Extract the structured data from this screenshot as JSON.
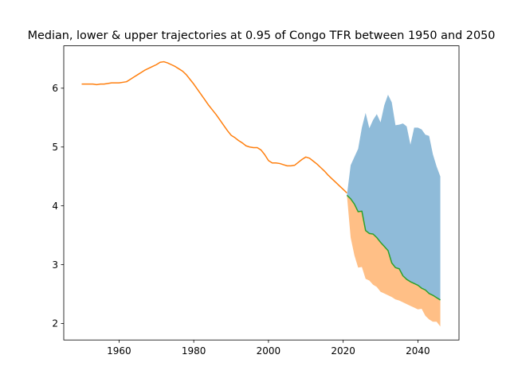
{
  "chart_data": {
    "type": "area",
    "title": "Median, lower & upper trajectories at 0.95 of Congo TFR between 1950 and 2050",
    "xlabel": "",
    "ylabel": "",
    "xlim": [
      1945.2,
      2051.0
    ],
    "ylim": [
      1.72,
      6.72
    ],
    "xticks": [
      1960,
      1980,
      2000,
      2020,
      2040
    ],
    "yticks": [
      2,
      3,
      4,
      5,
      6
    ],
    "grid": false,
    "colors": {
      "historical": "#ff7f0e",
      "median": "#2ca02c",
      "upper_band": "#1f77b4",
      "lower_band": "#ff7f0e",
      "band_alpha": 0.5
    },
    "series": [
      {
        "role": "historical",
        "x": [
          1950,
          1951,
          1952,
          1953,
          1954,
          1955,
          1956,
          1957,
          1958,
          1959,
          1960,
          1961,
          1962,
          1963,
          1964,
          1965,
          1966,
          1967,
          1968,
          1969,
          1970,
          1971,
          1972,
          1973,
          1974,
          1975,
          1976,
          1977,
          1978,
          1979,
          1980,
          1981,
          1982,
          1983,
          1984,
          1985,
          1986,
          1987,
          1988,
          1989,
          1990,
          1991,
          1992,
          1993,
          1994,
          1995,
          1996,
          1997,
          1998,
          1999,
          2000,
          2001,
          2002,
          2003,
          2004,
          2005,
          2006,
          2007,
          2008,
          2009,
          2010,
          2011,
          2012,
          2013,
          2014,
          2015,
          2016,
          2017,
          2018,
          2019,
          2020,
          2021
        ],
        "y": [
          6.07,
          6.07,
          6.07,
          6.07,
          6.06,
          6.07,
          6.07,
          6.08,
          6.09,
          6.09,
          6.09,
          6.1,
          6.11,
          6.15,
          6.19,
          6.23,
          6.27,
          6.31,
          6.34,
          6.37,
          6.4,
          6.44,
          6.45,
          6.43,
          6.4,
          6.37,
          6.33,
          6.29,
          6.23,
          6.15,
          6.07,
          5.98,
          5.89,
          5.8,
          5.71,
          5.63,
          5.55,
          5.46,
          5.37,
          5.28,
          5.2,
          5.16,
          5.11,
          5.07,
          5.02,
          5.0,
          4.99,
          4.99,
          4.95,
          4.87,
          4.77,
          4.73,
          4.73,
          4.72,
          4.7,
          4.68,
          4.68,
          4.69,
          4.74,
          4.79,
          4.83,
          4.81,
          4.76,
          4.71,
          4.65,
          4.59,
          4.52,
          4.46,
          4.4,
          4.34,
          4.28,
          4.22
        ]
      },
      {
        "role": "median",
        "x": [
          2021,
          2022,
          2023,
          2024,
          2025,
          2026,
          2027,
          2028,
          2029,
          2030,
          2031,
          2032,
          2033,
          2034,
          2035,
          2036,
          2037,
          2038,
          2039,
          2040,
          2041,
          2042,
          2043,
          2044,
          2045,
          2046
        ],
        "y": [
          4.18,
          4.12,
          4.03,
          3.9,
          3.91,
          3.58,
          3.53,
          3.52,
          3.46,
          3.38,
          3.31,
          3.24,
          3.03,
          2.95,
          2.93,
          2.81,
          2.75,
          2.71,
          2.68,
          2.65,
          2.6,
          2.57,
          2.51,
          2.48,
          2.44,
          2.4
        ]
      },
      {
        "role": "upper",
        "x": [
          2021,
          2022,
          2023,
          2024,
          2025,
          2026,
          2027,
          2028,
          2029,
          2030,
          2031,
          2032,
          2033,
          2034,
          2035,
          2036,
          2037,
          2038,
          2039,
          2040,
          2041,
          2042,
          2043,
          2044,
          2045,
          2046
        ],
        "y": [
          4.18,
          4.69,
          4.83,
          4.97,
          5.33,
          5.58,
          5.32,
          5.46,
          5.56,
          5.42,
          5.71,
          5.89,
          5.76,
          5.37,
          5.38,
          5.4,
          5.35,
          5.04,
          5.33,
          5.33,
          5.3,
          5.21,
          5.19,
          4.88,
          4.67,
          4.5
        ]
      },
      {
        "role": "lower",
        "x": [
          2021,
          2022,
          2023,
          2024,
          2025,
          2026,
          2027,
          2028,
          2029,
          2030,
          2031,
          2032,
          2033,
          2034,
          2035,
          2036,
          2037,
          2038,
          2039,
          2040,
          2041,
          2042,
          2043,
          2044,
          2045,
          2046
        ],
        "y": [
          4.18,
          3.46,
          3.16,
          2.95,
          2.96,
          2.76,
          2.73,
          2.66,
          2.62,
          2.54,
          2.51,
          2.48,
          2.45,
          2.41,
          2.39,
          2.36,
          2.33,
          2.3,
          2.27,
          2.24,
          2.25,
          2.13,
          2.07,
          2.03,
          2.03,
          1.95
        ]
      }
    ]
  }
}
